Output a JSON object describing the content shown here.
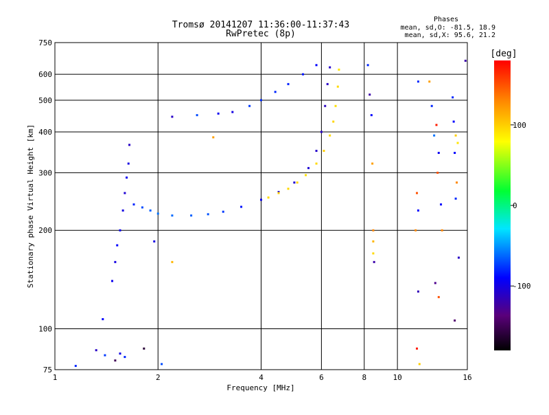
{
  "chart_data": {
    "type": "scatter",
    "title": "Tromsø 20141207 11:36:00-11:37:43",
    "subtitle": "RwPretec (8p)",
    "xlabel": "Frequency [MHz]",
    "ylabel": "Stationary phase Virtual Height [km]",
    "x_scale": "log",
    "y_scale": "log",
    "xlim": [
      1,
      16
    ],
    "ylim": [
      75,
      750
    ],
    "x_ticks": [
      1,
      2,
      4,
      6,
      8,
      10,
      16
    ],
    "x_tick_labels": [
      "1",
      "2",
      "4",
      "6",
      "8",
      "10",
      "16"
    ],
    "x_gridlines": [
      2,
      4,
      6,
      8,
      10
    ],
    "y_ticks": [
      75,
      100,
      200,
      300,
      400,
      500,
      600,
      750
    ],
    "y_tick_labels": [
      "75",
      "100",
      "200",
      "300",
      "400",
      "500",
      "600",
      "750"
    ],
    "y_gridlines": [
      100,
      200,
      300,
      400,
      500,
      600
    ],
    "grid": true,
    "stats": {
      "title": "Phases",
      "line_o": "mean, sd,O: -81.5, 18.9",
      "line_x": "mean, sd,X:  95.6, 21.2"
    },
    "colorbar": {
      "label": "[deg]",
      "range": [
        -180,
        180
      ],
      "ticks": [
        100,
        0,
        -100
      ],
      "tick_labels": [
        "100",
        "0",
        "-100"
      ],
      "colormap": "rainbow: black-purple-blue-cyan-green-yellow-red"
    },
    "series": [
      {
        "points": [
          {
            "x": 1.47,
            "y": 140,
            "p": -95
          },
          {
            "x": 1.5,
            "y": 160,
            "p": -100
          },
          {
            "x": 1.52,
            "y": 180,
            "p": -90
          },
          {
            "x": 1.55,
            "y": 200,
            "p": -95
          },
          {
            "x": 1.58,
            "y": 230,
            "p": -100
          },
          {
            "x": 1.6,
            "y": 260,
            "p": -105
          },
          {
            "x": 1.62,
            "y": 290,
            "p": -95
          },
          {
            "x": 1.64,
            "y": 320,
            "p": -100
          },
          {
            "x": 1.65,
            "y": 365,
            "p": -110
          },
          {
            "x": 1.7,
            "y": 240,
            "p": -80
          },
          {
            "x": 1.8,
            "y": 235,
            "p": -70
          },
          {
            "x": 1.9,
            "y": 230,
            "p": -65
          },
          {
            "x": 2.0,
            "y": 225,
            "p": -60
          },
          {
            "x": 2.2,
            "y": 222,
            "p": -62
          },
          {
            "x": 2.5,
            "y": 222,
            "p": -65
          },
          {
            "x": 2.8,
            "y": 224,
            "p": -68
          },
          {
            "x": 3.1,
            "y": 228,
            "p": -75
          },
          {
            "x": 3.5,
            "y": 236,
            "p": -85
          },
          {
            "x": 4.0,
            "y": 248,
            "p": -95
          },
          {
            "x": 4.5,
            "y": 262,
            "p": -100
          },
          {
            "x": 5.0,
            "y": 280,
            "p": -105
          },
          {
            "x": 5.5,
            "y": 310,
            "p": -105
          },
          {
            "x": 5.8,
            "y": 350,
            "p": -108
          },
          {
            "x": 6.0,
            "y": 400,
            "p": -110
          },
          {
            "x": 6.15,
            "y": 480,
            "p": -112
          },
          {
            "x": 6.25,
            "y": 560,
            "p": -110
          },
          {
            "x": 6.35,
            "y": 630,
            "p": -108
          }
        ]
      },
      {
        "points": [
          {
            "x": 4.2,
            "y": 252,
            "p": 95
          },
          {
            "x": 4.5,
            "y": 260,
            "p": 100
          },
          {
            "x": 4.8,
            "y": 268,
            "p": 95
          },
          {
            "x": 5.1,
            "y": 280,
            "p": 98
          },
          {
            "x": 5.4,
            "y": 295,
            "p": 92
          },
          {
            "x": 5.8,
            "y": 320,
            "p": 95
          },
          {
            "x": 6.1,
            "y": 350,
            "p": 100
          },
          {
            "x": 6.35,
            "y": 390,
            "p": 95
          },
          {
            "x": 6.5,
            "y": 430,
            "p": 97
          },
          {
            "x": 6.6,
            "y": 480,
            "p": 92
          },
          {
            "x": 6.7,
            "y": 550,
            "p": 95
          },
          {
            "x": 6.75,
            "y": 620,
            "p": 90
          }
        ]
      },
      {
        "points": [
          {
            "x": 3.7,
            "y": 480,
            "p": -75
          },
          {
            "x": 4.0,
            "y": 500,
            "p": -78
          },
          {
            "x": 4.4,
            "y": 530,
            "p": -80
          },
          {
            "x": 4.8,
            "y": 560,
            "p": -82
          },
          {
            "x": 5.3,
            "y": 600,
            "p": -85
          },
          {
            "x": 5.8,
            "y": 640,
            "p": -90
          }
        ]
      },
      {
        "points": [
          {
            "x": 2.2,
            "y": 445,
            "p": -110
          },
          {
            "x": 2.6,
            "y": 450,
            "p": -70
          },
          {
            "x": 3.0,
            "y": 455,
            "p": -95
          },
          {
            "x": 3.3,
            "y": 460,
            "p": -100
          },
          {
            "x": 2.9,
            "y": 385,
            "p": 120
          },
          {
            "x": 2.2,
            "y": 160,
            "p": 110
          },
          {
            "x": 1.95,
            "y": 185,
            "p": -100
          }
        ]
      },
      {
        "points": [
          {
            "x": 8.2,
            "y": 640,
            "p": -80
          },
          {
            "x": 8.3,
            "y": 520,
            "p": -120
          },
          {
            "x": 8.4,
            "y": 450,
            "p": -90
          },
          {
            "x": 8.45,
            "y": 320,
            "p": 120
          },
          {
            "x": 8.5,
            "y": 200,
            "p": 130
          },
          {
            "x": 8.5,
            "y": 185,
            "p": 110
          },
          {
            "x": 8.5,
            "y": 170,
            "p": 95
          },
          {
            "x": 8.55,
            "y": 160,
            "p": -120
          },
          {
            "x": 11.5,
            "y": 570,
            "p": -80
          },
          {
            "x": 11.4,
            "y": 260,
            "p": 150
          },
          {
            "x": 11.5,
            "y": 230,
            "p": -90
          },
          {
            "x": 11.3,
            "y": 200,
            "p": 130
          },
          {
            "x": 11.5,
            "y": 130,
            "p": -115
          },
          {
            "x": 11.4,
            "y": 87,
            "p": 170
          },
          {
            "x": 11.6,
            "y": 78,
            "p": 100
          },
          {
            "x": 12.4,
            "y": 570,
            "p": 120
          },
          {
            "x": 12.6,
            "y": 480,
            "p": -80
          },
          {
            "x": 13.0,
            "y": 420,
            "p": 170
          },
          {
            "x": 12.8,
            "y": 390,
            "p": -60
          },
          {
            "x": 13.2,
            "y": 345,
            "p": -95
          },
          {
            "x": 13.1,
            "y": 300,
            "p": 150
          },
          {
            "x": 13.4,
            "y": 240,
            "p": -90
          },
          {
            "x": 13.5,
            "y": 200,
            "p": 130
          },
          {
            "x": 12.9,
            "y": 138,
            "p": -130
          },
          {
            "x": 13.2,
            "y": 125,
            "p": 150
          },
          {
            "x": 14.5,
            "y": 510,
            "p": -80
          },
          {
            "x": 14.6,
            "y": 430,
            "p": -90
          },
          {
            "x": 14.8,
            "y": 390,
            "p": 100
          },
          {
            "x": 15.0,
            "y": 370,
            "p": 90
          },
          {
            "x": 14.7,
            "y": 345,
            "p": -90
          },
          {
            "x": 14.9,
            "y": 280,
            "p": 130
          },
          {
            "x": 14.8,
            "y": 250,
            "p": -80
          },
          {
            "x": 15.1,
            "y": 165,
            "p": -110
          },
          {
            "x": 14.7,
            "y": 106,
            "p": -140
          },
          {
            "x": 15.8,
            "y": 660,
            "p": -120
          }
        ]
      },
      {
        "points": [
          {
            "x": 1.15,
            "y": 77,
            "p": -80
          },
          {
            "x": 1.32,
            "y": 86,
            "p": -110
          },
          {
            "x": 1.4,
            "y": 83,
            "p": -75
          },
          {
            "x": 1.5,
            "y": 80,
            "p": -150
          },
          {
            "x": 1.55,
            "y": 84,
            "p": -100
          },
          {
            "x": 1.6,
            "y": 82,
            "p": -80
          },
          {
            "x": 1.82,
            "y": 87,
            "p": -160
          },
          {
            "x": 2.05,
            "y": 78,
            "p": -70
          },
          {
            "x": 1.38,
            "y": 107,
            "p": -90
          }
        ]
      }
    ]
  }
}
